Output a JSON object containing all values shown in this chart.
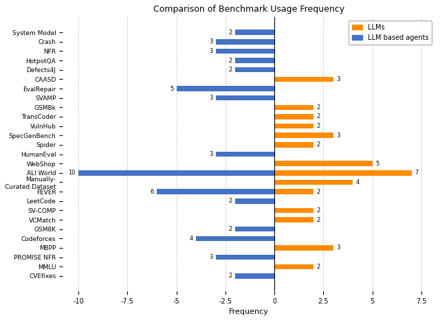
{
  "title": "Comparison of Benchmark Usage Frequency",
  "xlabel": "Frequency",
  "categories": [
    "System Model",
    "Crash",
    "NFR",
    "HotpotQA",
    "Defects4J",
    "CAASD",
    "EvalRepair",
    "SVAMP",
    "GSMBk",
    "TransCoder",
    "VulnHub",
    "SpecGenBench",
    "Spider",
    "HumanEval",
    "WebShop",
    "ALI World",
    "Manually-\nCurated Dataset",
    "FEVER",
    "LeetCode",
    "SV-COMP",
    "VCMatch",
    "GSM8K",
    "Codeforces",
    "MBPP",
    "PROMISE NFR",
    "MMLU",
    "CVEfixes"
  ],
  "llm_values": [
    0,
    0,
    0,
    0,
    0,
    3,
    0,
    0,
    2,
    2,
    2,
    3,
    2,
    0,
    5,
    7,
    4,
    2,
    0,
    2,
    2,
    0,
    0,
    3,
    0,
    2,
    0
  ],
  "agent_values": [
    -2,
    -3,
    -3,
    -2,
    -2,
    0,
    -5,
    -3,
    0,
    0,
    0,
    0,
    0,
    -3,
    0,
    -10,
    0,
    -6,
    -2,
    0,
    0,
    -2,
    -4,
    0,
    -3,
    0,
    -2
  ],
  "llm_labels": [
    "",
    "",
    "",
    "",
    "",
    "3",
    "",
    "",
    "2",
    "2",
    "2",
    "3",
    "2",
    "",
    "5",
    "7",
    "4",
    "2",
    "",
    "2",
    "2",
    "",
    "",
    "3",
    "",
    "2",
    ""
  ],
  "agent_labels": [
    "2",
    "3",
    "3",
    "2",
    "2",
    "",
    "5",
    "3",
    "",
    "",
    "",
    "",
    "",
    "3",
    "",
    "10",
    "",
    "6",
    "2",
    "",
    "",
    "2",
    "4",
    "",
    "3",
    "",
    "2"
  ],
  "llm_color": "#FF8C00",
  "agent_color": "#4472C4",
  "xlim": [
    -10.8,
    8.2
  ],
  "xticks": [
    -10.0,
    -7.5,
    -5.0,
    -2.5,
    0.0,
    2.5,
    5.0,
    7.5
  ],
  "background_color": "#ffffff",
  "grid_color": "#bbbbbb",
  "legend_llm": "LLMs",
  "legend_agent": "LLM based agents",
  "bar_height": 0.55
}
